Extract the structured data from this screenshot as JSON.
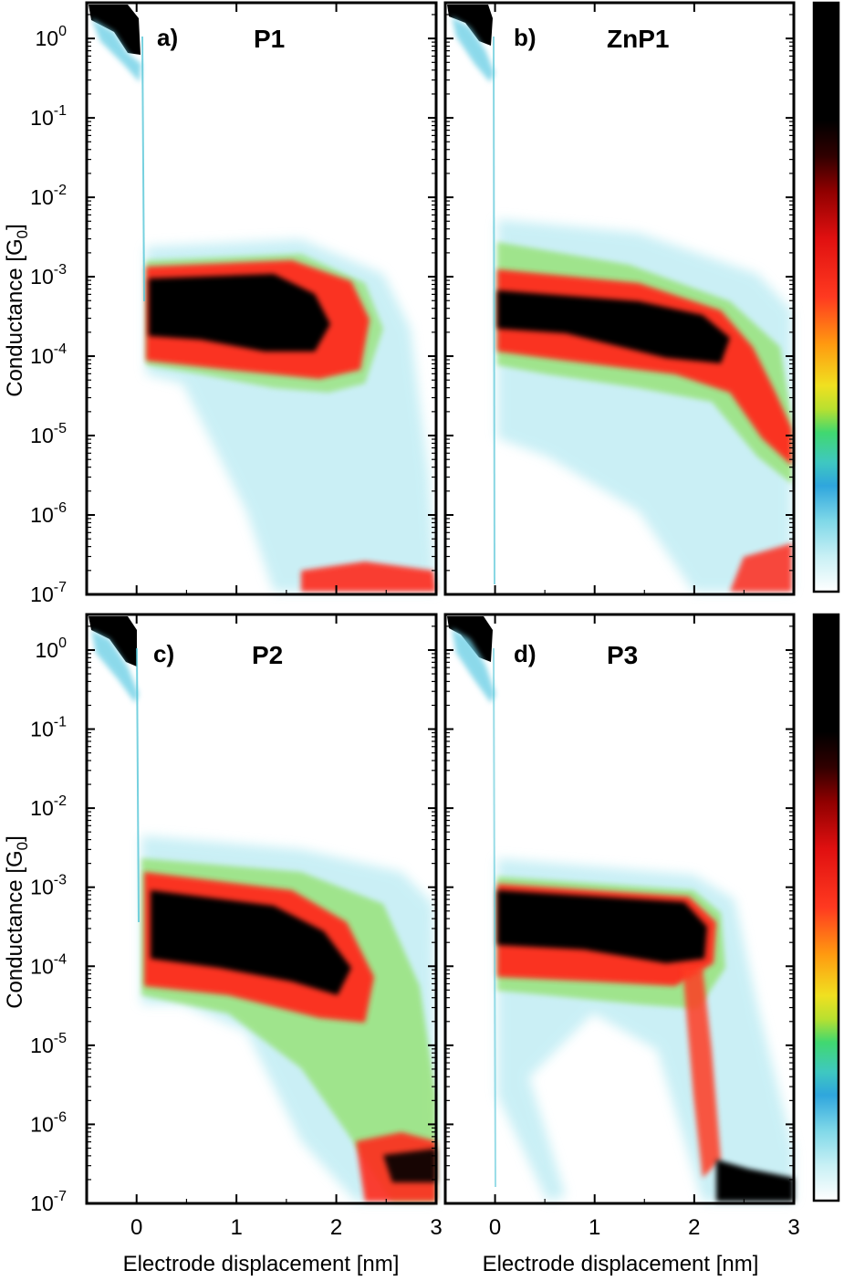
{
  "chart_data": [
    {
      "type": "heatmap",
      "panel_label": "a)",
      "panel_name": "P1",
      "xlim": [
        -0.5,
        3
      ],
      "ylim_log10": [
        -7,
        0.45
      ],
      "x_ticks": [
        {
          "v": 0,
          "label": "0"
        },
        {
          "v": 1,
          "label": "1"
        },
        {
          "v": 2,
          "label": "2"
        },
        {
          "v": 3,
          "label": "3"
        }
      ],
      "y_ticks": [
        0,
        -1,
        -2,
        -3,
        -4,
        -5,
        -6,
        -7
      ],
      "ylabel": "Conductance [G",
      "ylabel_sub": "0",
      "xlabel": "",
      "plateau_log10G": -3.5,
      "plateau_x_range": [
        0.1,
        2.2
      ]
    },
    {
      "type": "heatmap",
      "panel_label": "b)",
      "panel_name": "ZnP1",
      "xlim": [
        -0.5,
        3
      ],
      "ylim_log10": [
        -7,
        0.45
      ],
      "x_ticks": [
        {
          "v": 0,
          "label": "0"
        },
        {
          "v": 1,
          "label": "1"
        },
        {
          "v": 2,
          "label": "2"
        },
        {
          "v": 3,
          "label": "3"
        }
      ],
      "y_ticks": [
        0,
        -1,
        -2,
        -3,
        -4,
        -5,
        -6,
        -7
      ],
      "ylabel": "",
      "xlabel": "",
      "plateau_log10G": -3.6,
      "plateau_x_range": [
        0.05,
        2.4
      ]
    },
    {
      "type": "heatmap",
      "panel_label": "c)",
      "panel_name": "P2",
      "xlim": [
        -0.5,
        3
      ],
      "ylim_log10": [
        -7,
        0.45
      ],
      "x_ticks": [
        {
          "v": 0,
          "label": "0"
        },
        {
          "v": 1,
          "label": "1"
        },
        {
          "v": 2,
          "label": "2"
        },
        {
          "v": 3,
          "label": "3"
        }
      ],
      "y_ticks": [
        0,
        -1,
        -2,
        -3,
        -4,
        -5,
        -6,
        -7
      ],
      "ylabel": "Conductance [G",
      "ylabel_sub": "0",
      "xlabel": "Electrode displacement [nm]",
      "plateau_log10G": -3.6,
      "plateau_x_range": [
        0.1,
        2.6
      ]
    },
    {
      "type": "heatmap",
      "panel_label": "d)",
      "panel_name": "P3",
      "xlim": [
        -0.5,
        3
      ],
      "ylim_log10": [
        -7,
        0.45
      ],
      "x_ticks": [
        {
          "v": 0,
          "label": "0"
        },
        {
          "v": 1,
          "label": "1"
        },
        {
          "v": 2,
          "label": "2"
        },
        {
          "v": 3,
          "label": "3"
        }
      ],
      "y_ticks": [
        0,
        -1,
        -2,
        -3,
        -4,
        -5,
        -6,
        -7
      ],
      "ylabel": "",
      "xlabel": "Electrode displacement [nm]",
      "plateau_log10G": -3.6,
      "plateau_x_range": [
        0.05,
        2.1
      ]
    }
  ],
  "colorbar": {
    "count": 2,
    "colors_bottom_to_top": [
      "#ffffff",
      "#c8f0f5",
      "#7fd8e8",
      "#2fa6dd",
      "#3fc8c0",
      "#40d870",
      "#b8e030",
      "#f0e020",
      "#ff9a10",
      "#ff3a20",
      "#e01010",
      "#900000",
      "#300000",
      "#000000",
      "#000000"
    ]
  }
}
